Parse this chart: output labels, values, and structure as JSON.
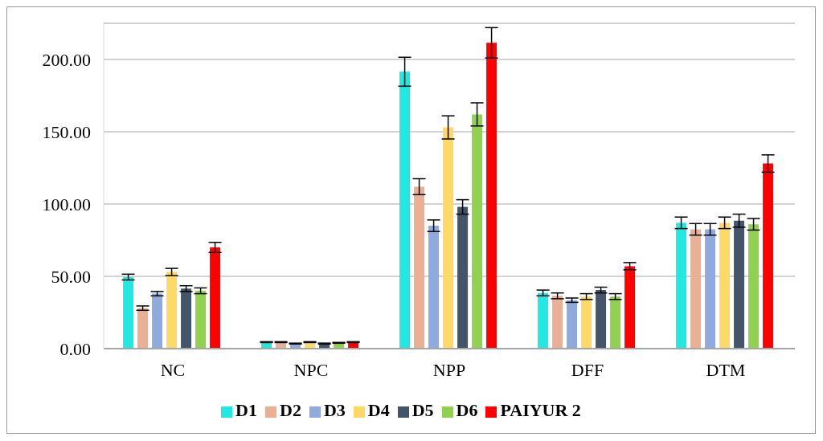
{
  "chart_data": {
    "type": "bar",
    "categories": [
      "NC",
      "NPC",
      "NPP",
      "DFF",
      "DTM"
    ],
    "series": [
      {
        "name": "D1",
        "color": "#22e8e2",
        "values": [
          49.5,
          4.5,
          191.5,
          38.5,
          87
        ],
        "errors": [
          2,
          0.3,
          10,
          2,
          4
        ]
      },
      {
        "name": "D2",
        "color": "#ebaf93",
        "values": [
          28,
          4.5,
          112,
          36.5,
          82.5
        ],
        "errors": [
          1.5,
          0.3,
          5.5,
          2,
          4
        ]
      },
      {
        "name": "D3",
        "color": "#8faadc",
        "values": [
          38,
          3.5,
          85,
          33.5,
          82.5
        ],
        "errors": [
          1.5,
          0.3,
          4,
          1.5,
          4
        ]
      },
      {
        "name": "D4",
        "color": "#ffd966",
        "values": [
          53,
          4.5,
          153,
          36,
          87
        ],
        "errors": [
          2.5,
          0.3,
          8,
          2,
          4
        ]
      },
      {
        "name": "D5",
        "color": "#44546a",
        "values": [
          41.5,
          3.5,
          98,
          40.5,
          88.5
        ],
        "errors": [
          2,
          0.3,
          5,
          2,
          4.5
        ]
      },
      {
        "name": "D6",
        "color": "#92d050",
        "values": [
          40,
          4,
          162,
          36,
          86
        ],
        "errors": [
          2,
          0.3,
          8,
          2,
          4
        ]
      },
      {
        "name": "PAIYUR 2",
        "color": "#ff0000",
        "values": [
          70,
          4.5,
          211.5,
          57,
          128
        ],
        "errors": [
          3.5,
          0.3,
          10.5,
          2.5,
          6
        ]
      }
    ],
    "ylim": [
      0,
      225
    ],
    "yticks": [
      {
        "value": 0,
        "label": "0.00"
      },
      {
        "value": 50,
        "label": "50.00"
      },
      {
        "value": 100,
        "label": "100.00"
      },
      {
        "value": 150,
        "label": "150.00"
      },
      {
        "value": 200,
        "label": "200.00"
      }
    ],
    "grid": "y",
    "legend": "bottom"
  }
}
